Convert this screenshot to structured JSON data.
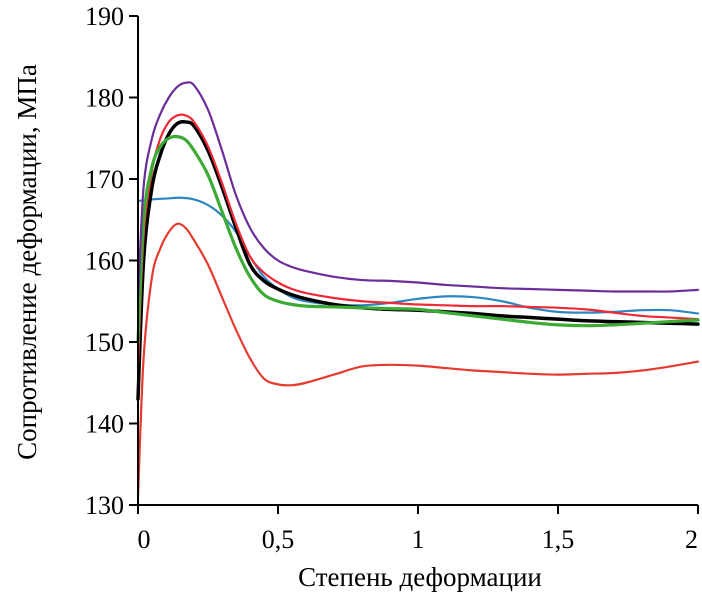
{
  "chart_data": {
    "type": "line",
    "title": "",
    "xlabel": "Степень деформации",
    "ylabel": "Сопротивление деформации, МПа",
    "xlim": [
      0,
      2
    ],
    "ylim": [
      130,
      190
    ],
    "xticks": [
      0,
      0.5,
      1,
      1.5,
      2
    ],
    "xtick_labels": [
      "0",
      "0,5",
      "1",
      "1,5",
      "2"
    ],
    "yticks": [
      130,
      140,
      150,
      160,
      170,
      180,
      190
    ],
    "ytick_labels": [
      "130",
      "140",
      "150",
      "160",
      "170",
      "180",
      "190"
    ],
    "grid": false,
    "legend": "none",
    "series": [
      {
        "color": "#e53b2f",
        "x": [
          0,
          0.02,
          0.05,
          0.08,
          0.11,
          0.14,
          0.17,
          0.2,
          0.25,
          0.3,
          0.35,
          0.4,
          0.45,
          0.5,
          0.55,
          0.6,
          0.7,
          0.8,
          0.9,
          1.0,
          1.1,
          1.2,
          1.3,
          1.4,
          1.5,
          1.6,
          1.7,
          1.8,
          1.9,
          2.0
        ],
        "y": [
          131,
          148,
          158,
          161.5,
          163.5,
          164.5,
          164,
          162.5,
          159.5,
          155.5,
          151.5,
          148,
          145.5,
          144.8,
          144.7,
          145,
          146,
          147,
          147.2,
          147.1,
          146.8,
          146.5,
          146.3,
          146.1,
          146,
          146.1,
          146.2,
          146.5,
          147,
          147.6
        ]
      },
      {
        "color": "#2e86c1",
        "x": [
          0,
          0.05,
          0.1,
          0.15,
          0.2,
          0.25,
          0.3,
          0.35,
          0.4,
          0.45,
          0.5,
          0.55,
          0.6,
          0.7,
          0.8,
          0.9,
          1.0,
          1.1,
          1.2,
          1.3,
          1.4,
          1.5,
          1.6,
          1.7,
          1.8,
          1.9,
          2.0
        ],
        "y": [
          167.3,
          167.5,
          167.6,
          167.7,
          167.5,
          166.8,
          165.5,
          163.5,
          160.5,
          158,
          156.5,
          155.5,
          155,
          154.6,
          154.5,
          154.8,
          155.3,
          155.6,
          155.5,
          155,
          154.2,
          153.7,
          153.6,
          153.7,
          153.9,
          153.9,
          153.5
        ]
      },
      {
        "color": "#000000",
        "x": [
          0,
          0.02,
          0.05,
          0.08,
          0.11,
          0.14,
          0.17,
          0.2,
          0.25,
          0.3,
          0.35,
          0.4,
          0.45,
          0.5,
          0.55,
          0.6,
          0.7,
          0.8,
          0.9,
          1.0,
          1.1,
          1.2,
          1.3,
          1.4,
          1.5,
          1.6,
          1.7,
          1.8,
          1.9,
          2.0
        ],
        "y": [
          143,
          160,
          169,
          173,
          175.5,
          176.8,
          177,
          176.5,
          173.5,
          169,
          164,
          159.5,
          157.5,
          156.5,
          155.8,
          155.3,
          154.6,
          154.2,
          154,
          153.9,
          153.7,
          153.5,
          153.2,
          153,
          152.8,
          152.6,
          152.5,
          152.4,
          152.3,
          152.2
        ]
      },
      {
        "color": "#ee2a36",
        "x": [
          0,
          0.02,
          0.05,
          0.08,
          0.11,
          0.14,
          0.17,
          0.2,
          0.25,
          0.3,
          0.35,
          0.4,
          0.45,
          0.5,
          0.55,
          0.6,
          0.7,
          0.8,
          0.9,
          1.0,
          1.1,
          1.2,
          1.3,
          1.4,
          1.5,
          1.6,
          1.7,
          1.8,
          1.9,
          2.0
        ],
        "y": [
          147,
          163,
          171,
          175,
          177,
          177.8,
          177.8,
          177,
          174,
          169.5,
          164.5,
          160.5,
          158.5,
          157.3,
          156.5,
          156,
          155.4,
          155,
          154.8,
          154.6,
          154.5,
          154.4,
          154.4,
          154.3,
          154.2,
          154,
          153.6,
          153.2,
          153,
          152.8
        ]
      },
      {
        "color": "#3daa35",
        "x": [
          0,
          0.02,
          0.05,
          0.08,
          0.11,
          0.14,
          0.17,
          0.2,
          0.25,
          0.3,
          0.35,
          0.4,
          0.45,
          0.5,
          0.55,
          0.6,
          0.7,
          0.8,
          0.9,
          1.0,
          1.1,
          1.2,
          1.3,
          1.4,
          1.5,
          1.6,
          1.7,
          1.8,
          1.9,
          2.0
        ],
        "y": [
          150,
          165,
          171.5,
          174,
          175,
          175.2,
          174.8,
          173.5,
          170.5,
          166,
          161.5,
          158,
          155.8,
          155,
          154.6,
          154.4,
          154.3,
          154.2,
          154.1,
          154,
          153.6,
          153.2,
          152.8,
          152.4,
          152.1,
          152,
          152.1,
          152.3,
          152.5,
          152.7
        ]
      },
      {
        "color": "#6a2d99",
        "x": [
          0,
          0.02,
          0.05,
          0.08,
          0.11,
          0.14,
          0.17,
          0.2,
          0.25,
          0.3,
          0.35,
          0.4,
          0.45,
          0.5,
          0.55,
          0.6,
          0.7,
          0.8,
          0.9,
          1.0,
          1.1,
          1.2,
          1.3,
          1.4,
          1.5,
          1.6,
          1.7,
          1.8,
          1.9,
          2.0
        ],
        "y": [
          155,
          169,
          175,
          178,
          180,
          181.3,
          181.8,
          181.5,
          178.5,
          173.5,
          168,
          164,
          161.5,
          160,
          159.2,
          158.7,
          158,
          157.6,
          157.5,
          157.3,
          157,
          156.8,
          156.6,
          156.5,
          156.4,
          156.3,
          156.2,
          156.2,
          156.2,
          156.4
        ]
      }
    ]
  }
}
